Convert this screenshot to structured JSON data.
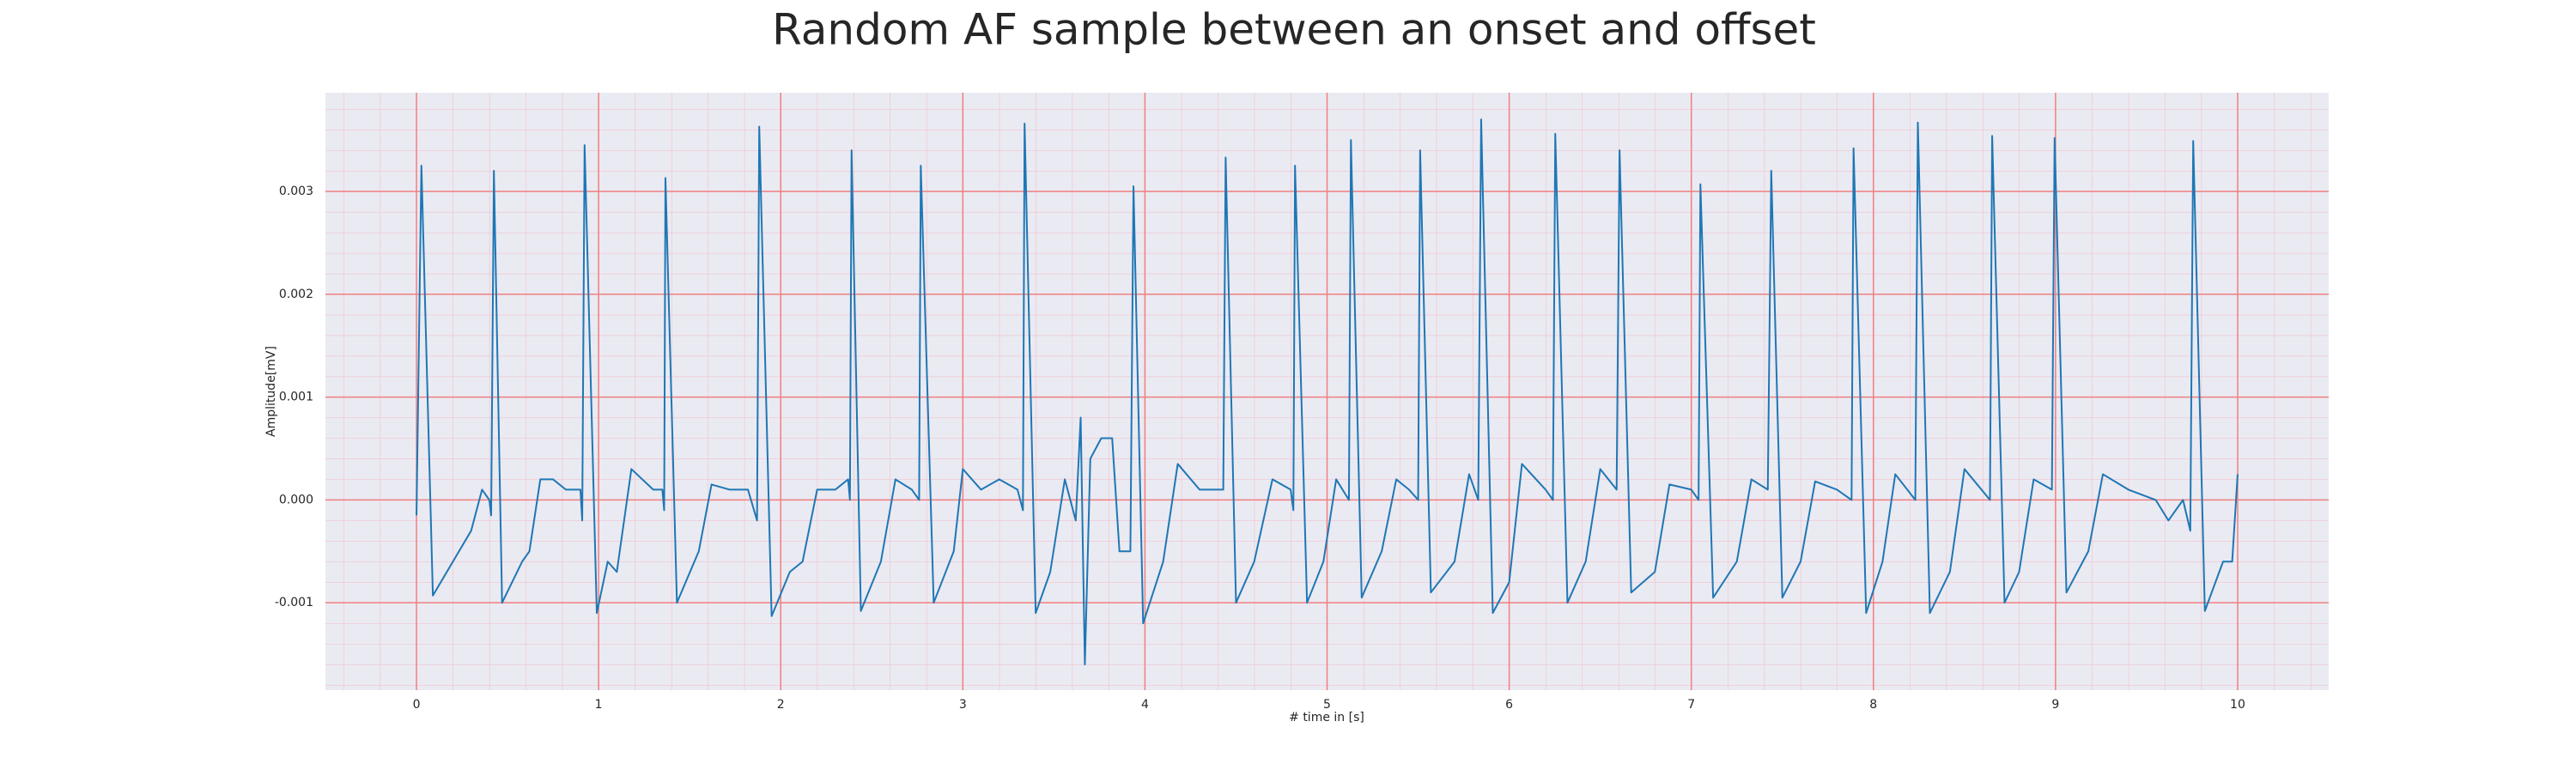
{
  "chart_data": {
    "type": "line",
    "title": "Random AF sample between an onset and offset",
    "x_label": "# time in [s]",
    "y_label": "Amplitude[mV]",
    "xlim": [
      -0.5,
      10.5
    ],
    "ylim": [
      -0.00185,
      0.00396
    ],
    "xticks": [
      0,
      1,
      2,
      3,
      4,
      5,
      6,
      7,
      8,
      9,
      10
    ],
    "yticks": [
      -0.001,
      {
        "value": 0,
        "label": "0.000"
      },
      0.001,
      0.002,
      0.003
    ],
    "grid": true,
    "series": [
      {
        "color": "#1f77b4",
        "x": [
          0.0,
          0.027,
          0.09,
          0.2,
          0.3,
          0.36,
          0.4,
          0.41,
          0.425,
          0.47,
          0.58,
          0.62,
          0.68,
          0.75,
          0.82,
          0.9,
          0.91,
          0.923,
          0.99,
          1.05,
          1.1,
          1.18,
          1.3,
          1.35,
          1.36,
          1.367,
          1.43,
          1.55,
          1.62,
          1.72,
          1.82,
          1.87,
          1.882,
          1.95,
          2.05,
          2.12,
          2.2,
          2.3,
          2.37,
          2.38,
          2.389,
          2.44,
          2.55,
          2.63,
          2.72,
          2.76,
          2.769,
          2.84,
          2.95,
          3.0,
          3.1,
          3.2,
          3.3,
          3.33,
          3.339,
          3.4,
          3.48,
          3.56,
          3.62,
          3.647,
          3.67,
          3.7,
          3.76,
          3.82,
          3.86,
          3.92,
          3.937,
          3.99,
          4.1,
          4.18,
          4.3,
          4.43,
          4.443,
          4.5,
          4.6,
          4.7,
          4.8,
          4.815,
          4.824,
          4.89,
          4.98,
          5.05,
          5.12,
          5.131,
          5.19,
          5.3,
          5.38,
          5.45,
          5.5,
          5.511,
          5.57,
          5.7,
          5.78,
          5.83,
          5.846,
          5.91,
          6.0,
          6.07,
          6.2,
          6.24,
          6.253,
          6.32,
          6.42,
          6.5,
          6.59,
          6.606,
          6.67,
          6.8,
          6.88,
          7.0,
          7.04,
          7.05,
          7.12,
          7.25,
          7.33,
          7.42,
          7.439,
          7.5,
          7.6,
          7.68,
          7.8,
          7.88,
          7.891,
          7.96,
          8.05,
          8.12,
          8.23,
          8.244,
          8.31,
          8.42,
          8.5,
          8.64,
          8.652,
          8.72,
          8.8,
          8.88,
          8.98,
          8.995,
          9.06,
          9.18,
          9.26,
          9.4,
          9.55,
          9.62,
          9.7,
          9.74,
          9.756,
          9.82,
          9.92,
          9.97,
          10.0
        ],
        "values": [
          -0.00015,
          0.00325,
          -0.00093,
          -0.0006,
          -0.0003,
          0.0001,
          0.0,
          -0.00015,
          0.0032,
          -0.001,
          -0.0006,
          -0.0005,
          0.0002,
          0.0002,
          0.0001,
          0.0001,
          -0.0002,
          0.00345,
          -0.0011,
          -0.0006,
          -0.0007,
          0.0003,
          0.0001,
          0.0001,
          -0.0001,
          0.00313,
          -0.001,
          -0.0005,
          0.00015,
          0.0001,
          0.0001,
          -0.0002,
          0.00363,
          -0.00113,
          -0.0007,
          -0.0006,
          0.0001,
          0.0001,
          0.0002,
          0.0,
          0.0034,
          -0.00108,
          -0.0006,
          0.0002,
          0.0001,
          0.0,
          0.00325,
          -0.001,
          -0.0005,
          0.0003,
          0.0001,
          0.0002,
          0.0001,
          -0.0001,
          0.00366,
          -0.0011,
          -0.0007,
          0.0002,
          -0.0002,
          0.0008,
          -0.0016,
          0.0004,
          0.0006,
          0.0006,
          -0.0005,
          -0.0005,
          0.00305,
          -0.0012,
          -0.0006,
          0.00035,
          0.0001,
          0.0001,
          0.00333,
          -0.001,
          -0.0006,
          0.0002,
          0.0001,
          -0.0001,
          0.00325,
          -0.001,
          -0.0006,
          0.0002,
          0.0,
          0.0035,
          -0.00095,
          -0.0005,
          0.0002,
          0.0001,
          0.0,
          0.0034,
          -0.0009,
          -0.0006,
          0.00025,
          0.0,
          0.0037,
          -0.0011,
          -0.0008,
          0.00035,
          0.0001,
          0.0,
          0.00356,
          -0.001,
          -0.0006,
          0.0003,
          0.0001,
          0.0034,
          -0.0009,
          -0.0007,
          0.00015,
          0.0001,
          0.0,
          0.00307,
          -0.00095,
          -0.0006,
          0.0002,
          0.0001,
          0.0032,
          -0.00095,
          -0.0006,
          0.00018,
          0.0001,
          0.0,
          0.00342,
          -0.0011,
          -0.0006,
          0.00025,
          0.0,
          0.00367,
          -0.0011,
          -0.0007,
          0.0003,
          0.0,
          0.00354,
          -0.001,
          -0.0007,
          0.0002,
          0.0001,
          0.00352,
          -0.0009,
          -0.0005,
          0.00025,
          0.0001,
          0.0,
          -0.0002,
          0.0,
          -0.0003,
          0.00349,
          -0.00108,
          -0.0006,
          -0.0006,
          0.00025
        ]
      }
    ]
  }
}
